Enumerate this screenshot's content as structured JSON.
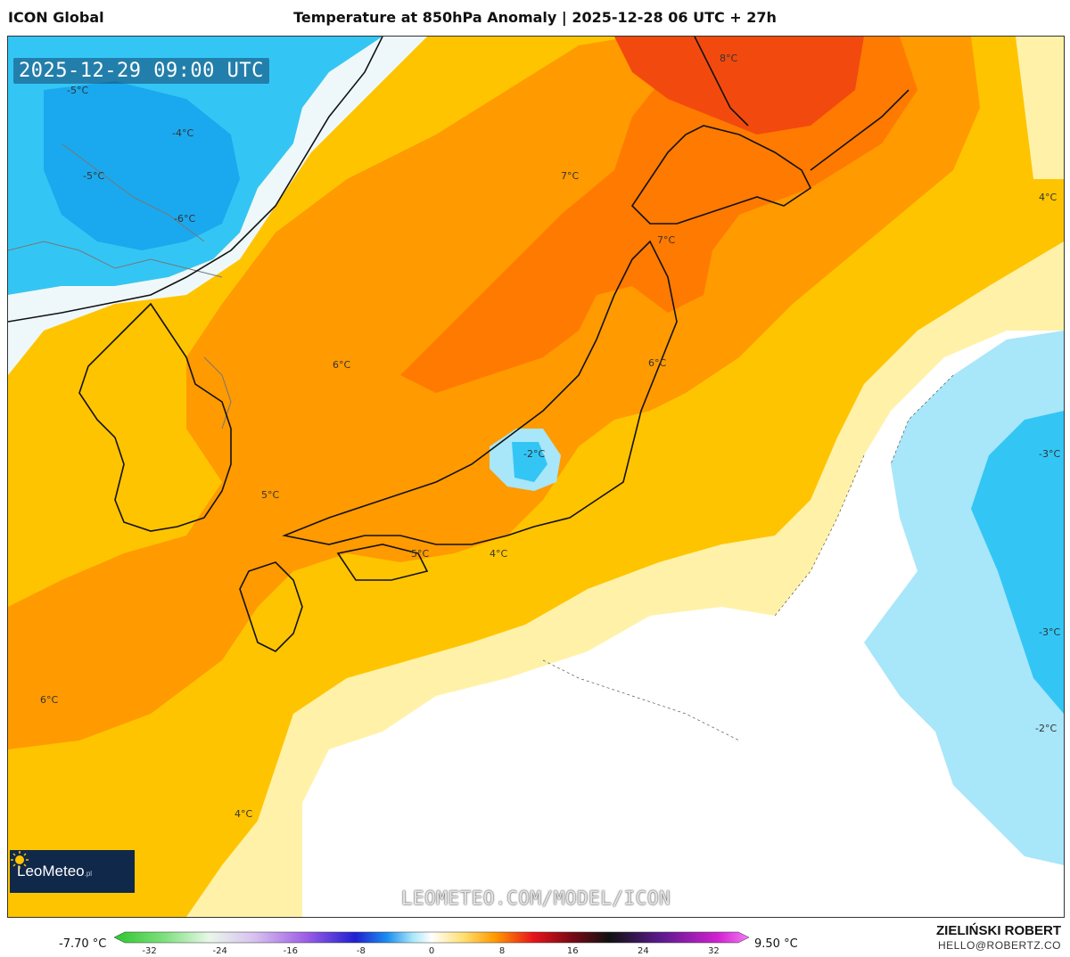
{
  "header": {
    "model_name": "ICON Global",
    "title": "Temperature at 850hPa Anomaly | 2025-12-28 06 UTC + 27h"
  },
  "map": {
    "valid_time": "2025-12-29 09:00 UTC",
    "watermark": "LEOMETEO.COM/MODEL/ICON",
    "logo_text": "LeoMeteo",
    "logo_suffix": ".pl",
    "contour_labels": [
      {
        "id": "c1",
        "text": "-5°C"
      },
      {
        "id": "c2",
        "text": "-4°C"
      },
      {
        "id": "c3",
        "text": "-5°C"
      },
      {
        "id": "c4",
        "text": "-6°C"
      },
      {
        "id": "c5",
        "text": "8°C"
      },
      {
        "id": "c6",
        "text": "7°C"
      },
      {
        "id": "c7",
        "text": "7°C"
      },
      {
        "id": "c8",
        "text": "4°C"
      },
      {
        "id": "c9",
        "text": "6°C"
      },
      {
        "id": "c10",
        "text": "6°C"
      },
      {
        "id": "c11",
        "text": "-2°C"
      },
      {
        "id": "c12",
        "text": "-3°C"
      },
      {
        "id": "c13",
        "text": "5°C"
      },
      {
        "id": "c14",
        "text": "5°C"
      },
      {
        "id": "c15",
        "text": "4°C"
      },
      {
        "id": "c16",
        "text": "-3°C"
      },
      {
        "id": "c17",
        "text": "6°C"
      },
      {
        "id": "c18",
        "text": "-2°C"
      },
      {
        "id": "c19",
        "text": "4°C"
      }
    ],
    "colors": {
      "cold_deep": "#1aa9ee",
      "cold": "#33c6f5",
      "cool": "#a8e6fa",
      "neutral": "#ffffff",
      "mild": "#fff2a8",
      "warm": "#ffc400",
      "warmer": "#ff9a00",
      "hot": "#ff7a00",
      "hottest": "#f24a0e",
      "coast": "#111111",
      "border": "#777777"
    }
  },
  "legend": {
    "min_value": "-7.70 °C",
    "max_value": "9.50 °C",
    "ticks": [
      "-32",
      "-24",
      "-16",
      "-8",
      "0",
      "8",
      "16",
      "24",
      "32"
    ],
    "range": [
      -36,
      36
    ]
  },
  "footer": {
    "author": "ZIELIŃSKI ROBERT",
    "email": "HELLO@ROBERTZ.CO"
  }
}
